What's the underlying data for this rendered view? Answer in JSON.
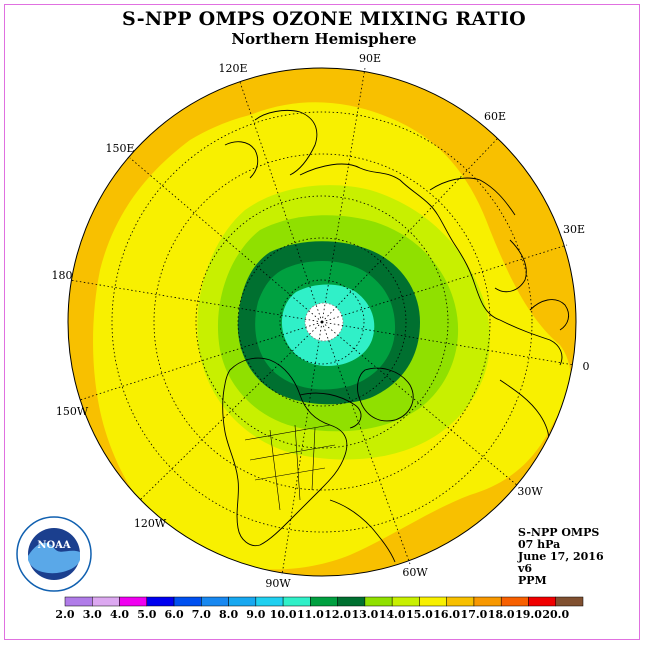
{
  "title": "S-NPP OMPS OZONE MIXING RATIO",
  "subtitle": "Northern Hemisphere",
  "longitude_labels": [
    "90E",
    "60E",
    "30E",
    "0",
    "30W",
    "60W",
    "90W",
    "120W",
    "150W",
    "180",
    "150E",
    "120E"
  ],
  "info": {
    "instrument": "S-NPP OMPS",
    "level": "07 hPa",
    "date": "June 17, 2016",
    "version": "v6",
    "units": "PPM"
  },
  "colorbar": {
    "ticks": [
      "2.0",
      "3.0",
      "4.0",
      "5.0",
      "6.0",
      "7.0",
      "8.0",
      "9.0",
      "10.0",
      "11.0",
      "12.0",
      "13.0",
      "14.0",
      "15.0",
      "16.0",
      "17.0",
      "18.0",
      "19.0",
      "20.0"
    ],
    "colors": [
      "#b07ce8",
      "#dca8f0",
      "#f000f0",
      "#0000f0",
      "#0050f0",
      "#1888f0",
      "#18a8f0",
      "#20d0f0",
      "#30f0c8",
      "#00a040",
      "#007030",
      "#90e000",
      "#c8f000",
      "#f8f000",
      "#f8c000",
      "#f89800",
      "#f86000",
      "#f00000",
      "#805030"
    ]
  },
  "logo_text": "NOAA"
}
